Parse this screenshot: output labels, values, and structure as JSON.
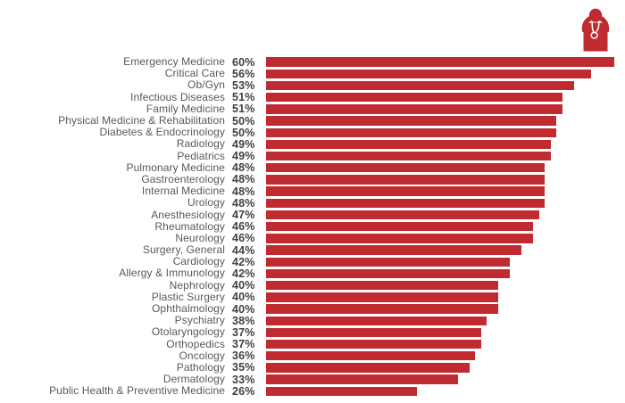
{
  "page": {
    "background": "#ffffff"
  },
  "icon": {
    "name": "doctor-stethoscope-icon",
    "color": "#BF2B31"
  },
  "chart_data": {
    "type": "bar",
    "orientation": "horizontal",
    "title": "",
    "xlabel": "",
    "ylabel": "",
    "xlim": [
      0,
      60
    ],
    "grid": false,
    "legend": "none",
    "value_suffix": "%",
    "bar_color": "#BF2B31",
    "label_color": "#58595B",
    "value_color": "#3F4042",
    "categories": [
      "Emergency Medicine",
      "Critical Care",
      "Ob/Gyn",
      "Infectious Diseases",
      "Family Medicine",
      "Physical Medicine & Rehabilitation",
      "Diabetes & Endocrinology",
      "Radiology",
      "Pediatrics",
      "Pulmonary Medicine",
      "Gastroenterology",
      "Internal Medicine",
      "Urology",
      "Anesthesiology",
      "Rheumatology",
      "Neurology",
      "Surgery, General",
      "Cardiology",
      "Allergy & Immunology",
      "Nephrology",
      "Plastic Surgery",
      "Ophthalmology",
      "Psychiatry",
      "Otolaryngology",
      "Orthopedics",
      "Oncology",
      "Pathology",
      "Dermatology",
      "Public Health & Preventive Medicine"
    ],
    "values": [
      60,
      56,
      53,
      51,
      51,
      50,
      50,
      49,
      49,
      48,
      48,
      48,
      48,
      47,
      46,
      46,
      44,
      42,
      42,
      40,
      40,
      40,
      38,
      37,
      37,
      36,
      35,
      33,
      26
    ]
  }
}
